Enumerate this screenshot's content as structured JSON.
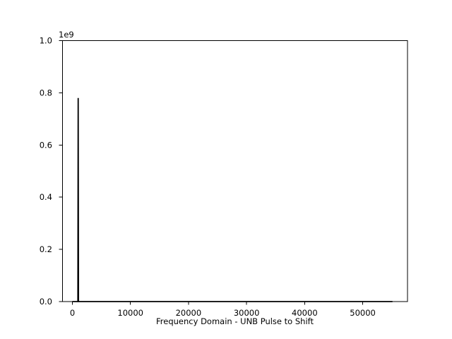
{
  "figure": {
    "background_color": "#ffffff"
  },
  "chart_data": {
    "type": "line",
    "title": "",
    "xlabel": "Frequency Domain - UNB Pulse to Shift",
    "ylabel": "",
    "y_axis_offset_text": "1e9",
    "x_tick_values": [
      0,
      10000,
      20000,
      30000,
      40000,
      50000
    ],
    "x_tick_labels": [
      "0",
      "10000",
      "20000",
      "30000",
      "40000",
      "50000"
    ],
    "y_tick_values": [
      0,
      200000000,
      400000000,
      600000000,
      800000000,
      1000000000
    ],
    "y_tick_labels": [
      "0.0",
      "0.2",
      "0.4",
      "0.6",
      "0.8",
      "1.0"
    ],
    "xlim": [
      -1700,
      57715
    ],
    "ylim": [
      0,
      1000000000
    ],
    "grid": false,
    "legend_position": "none",
    "line_color": "#000000",
    "axis_color": "#000000",
    "text_color": "#000000",
    "series": [
      {
        "points": [
          [
            0,
            0
          ],
          [
            950,
            0
          ],
          [
            1000,
            780000000
          ],
          [
            1050,
            0
          ],
          [
            55125,
            0
          ]
        ]
      }
    ],
    "peak": {
      "x": 1000,
      "y": 780000000
    }
  }
}
